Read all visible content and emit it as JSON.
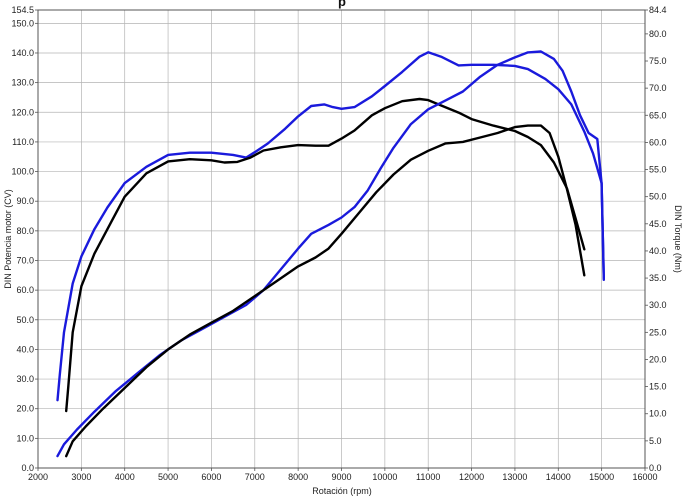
{
  "chart_data": {
    "type": "line",
    "title_fragment": "p",
    "xlabel": "Rotación (rpm)",
    "ylabel_left": "DIN Potencia motor (CV)",
    "ylabel_right": "DIN Torque (Nm)",
    "xlim": [
      2000,
      16000
    ],
    "ylim_left": [
      0,
      154.5
    ],
    "ylim_right": [
      0,
      84.4
    ],
    "grid": true,
    "x_ticks": [
      "2000",
      "3000",
      "4000",
      "5000",
      "6000",
      "7000",
      "8000",
      "9000",
      "10000",
      "11000",
      "12000",
      "13000",
      "14000",
      "15000",
      "16000"
    ],
    "y_left_ticks": [
      "0.0",
      "10.0",
      "20.0",
      "30.0",
      "40.0",
      "50.0",
      "60.0",
      "70.0",
      "80.0",
      "90.0",
      "100.0",
      "110.0",
      "120.0",
      "130.0",
      "140.0",
      "150.0",
      "154.5"
    ],
    "y_right_ticks": [
      "0.0",
      "5.0",
      "10.0",
      "15.0",
      "20.0",
      "25.0",
      "30.0",
      "35.0",
      "40.0",
      "45.0",
      "50.0",
      "55.0",
      "60.0",
      "65.0",
      "70.0",
      "75.0",
      "80.0",
      "84.4"
    ],
    "series": [
      {
        "color": "#1a1adc",
        "axis": "right",
        "points": [
          [
            2450,
            12.5
          ],
          [
            2500,
            17
          ],
          [
            2600,
            25
          ],
          [
            2800,
            34
          ],
          [
            3000,
            39
          ],
          [
            3300,
            44
          ],
          [
            3600,
            48
          ],
          [
            4000,
            52.5
          ],
          [
            4500,
            55.5
          ],
          [
            5000,
            57.7
          ],
          [
            5500,
            58.1
          ],
          [
            6000,
            58.1
          ],
          [
            6500,
            57.7
          ],
          [
            6800,
            57.2
          ],
          [
            7000,
            58.2
          ],
          [
            7300,
            59.8
          ],
          [
            7700,
            62.5
          ],
          [
            8000,
            64.8
          ],
          [
            8300,
            66.7
          ],
          [
            8600,
            67
          ],
          [
            8800,
            66.5
          ],
          [
            9000,
            66.2
          ],
          [
            9300,
            66.5
          ],
          [
            9700,
            68.5
          ],
          [
            10000,
            70.4
          ],
          [
            10400,
            73
          ],
          [
            10800,
            75.8
          ],
          [
            11000,
            76.6
          ],
          [
            11300,
            75.8
          ],
          [
            11700,
            74.2
          ],
          [
            12000,
            74.3
          ],
          [
            12500,
            74.3
          ],
          [
            13000,
            74.1
          ],
          [
            13300,
            73.5
          ],
          [
            13700,
            71.7
          ],
          [
            14000,
            69.8
          ],
          [
            14300,
            67
          ],
          [
            14600,
            62
          ],
          [
            14800,
            58
          ],
          [
            15000,
            52.5
          ],
          [
            15050,
            35
          ]
        ]
      },
      {
        "color": "#000000",
        "axis": "right",
        "points": [
          [
            2650,
            10.5
          ],
          [
            2700,
            15
          ],
          [
            2800,
            25
          ],
          [
            3000,
            33.5
          ],
          [
            3300,
            39.5
          ],
          [
            3700,
            45.5
          ],
          [
            4000,
            50
          ],
          [
            4500,
            54.3
          ],
          [
            5000,
            56.5
          ],
          [
            5500,
            56.9
          ],
          [
            6000,
            56.7
          ],
          [
            6300,
            56.3
          ],
          [
            6600,
            56.4
          ],
          [
            6900,
            57.2
          ],
          [
            7200,
            58.5
          ],
          [
            7600,
            59.1
          ],
          [
            8000,
            59.5
          ],
          [
            8400,
            59.4
          ],
          [
            8700,
            59.4
          ],
          [
            9000,
            60.7
          ],
          [
            9300,
            62.2
          ],
          [
            9700,
            65
          ],
          [
            10000,
            66.3
          ],
          [
            10400,
            67.6
          ],
          [
            10800,
            68
          ],
          [
            11000,
            67.8
          ],
          [
            11300,
            66.8
          ],
          [
            11700,
            65.5
          ],
          [
            12000,
            64.3
          ],
          [
            12500,
            63.1
          ],
          [
            13000,
            62.1
          ],
          [
            13300,
            61
          ],
          [
            13600,
            59.5
          ],
          [
            13900,
            56.3
          ],
          [
            14200,
            51.5
          ],
          [
            14400,
            46
          ],
          [
            14600,
            40.3
          ]
        ]
      },
      {
        "color": "#1a1adc",
        "axis": "left",
        "points": [
          [
            2450,
            4
          ],
          [
            2600,
            8
          ],
          [
            2900,
            13
          ],
          [
            3300,
            19
          ],
          [
            3800,
            26
          ],
          [
            4300,
            32
          ],
          [
            4800,
            38
          ],
          [
            5300,
            43
          ],
          [
            5800,
            47
          ],
          [
            6300,
            51
          ],
          [
            6800,
            55
          ],
          [
            7200,
            60
          ],
          [
            7600,
            67
          ],
          [
            8000,
            74
          ],
          [
            8300,
            79
          ],
          [
            8700,
            82
          ],
          [
            9000,
            84.5
          ],
          [
            9300,
            88
          ],
          [
            9600,
            93.5
          ],
          [
            9900,
            101
          ],
          [
            10200,
            108
          ],
          [
            10600,
            116
          ],
          [
            11000,
            121
          ],
          [
            11400,
            124
          ],
          [
            11800,
            127
          ],
          [
            12200,
            132
          ],
          [
            12600,
            136
          ],
          [
            13000,
            138.5
          ],
          [
            13300,
            140.2
          ],
          [
            13600,
            140.5
          ],
          [
            13900,
            138
          ],
          [
            14100,
            134
          ],
          [
            14300,
            127
          ],
          [
            14500,
            119
          ],
          [
            14700,
            113
          ],
          [
            14900,
            111
          ],
          [
            15000,
            96
          ],
          [
            15050,
            63.5
          ]
        ]
      },
      {
        "color": "#000000",
        "axis": "left",
        "points": [
          [
            2650,
            4
          ],
          [
            2800,
            9
          ],
          [
            3100,
            14
          ],
          [
            3500,
            20
          ],
          [
            4000,
            27
          ],
          [
            4500,
            34
          ],
          [
            5000,
            40
          ],
          [
            5500,
            45
          ],
          [
            6000,
            49
          ],
          [
            6500,
            53
          ],
          [
            7000,
            58
          ],
          [
            7500,
            63
          ],
          [
            8000,
            68
          ],
          [
            8400,
            71
          ],
          [
            8700,
            74
          ],
          [
            9000,
            79
          ],
          [
            9400,
            86
          ],
          [
            9800,
            93
          ],
          [
            10200,
            99
          ],
          [
            10600,
            104
          ],
          [
            11000,
            107
          ],
          [
            11400,
            109.5
          ],
          [
            11800,
            110
          ],
          [
            12200,
            111.5
          ],
          [
            12600,
            113
          ],
          [
            13000,
            115
          ],
          [
            13300,
            115.5
          ],
          [
            13600,
            115.5
          ],
          [
            13800,
            113
          ],
          [
            14000,
            105
          ],
          [
            14200,
            94
          ],
          [
            14400,
            82
          ],
          [
            14600,
            65
          ]
        ]
      }
    ]
  }
}
